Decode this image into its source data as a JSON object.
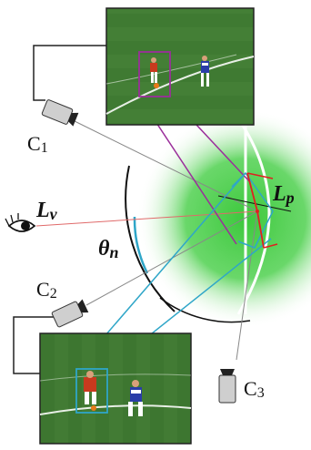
{
  "labels": {
    "c1": "C",
    "c1_sub": "1",
    "c2": "C",
    "c2_sub": "2",
    "c3": "C",
    "c3_sub": "3",
    "lv": "L",
    "lv_sub": "v",
    "lp": "L",
    "lp_sub": "p",
    "theta": "θ",
    "theta_sub": "n"
  },
  "icons": {
    "eye": "eye-icon",
    "camera1": "camera-icon",
    "camera2": "camera-icon",
    "camera3": "camera-icon"
  },
  "colors": {
    "field_green": "#3cc83c",
    "photo_grass": "#3f7a32",
    "top_highlight": "#9b2f9b",
    "bottom_highlight": "#2fa6c8",
    "viewing_ray": "#e06a6a",
    "red_arrow": "#e02020"
  }
}
